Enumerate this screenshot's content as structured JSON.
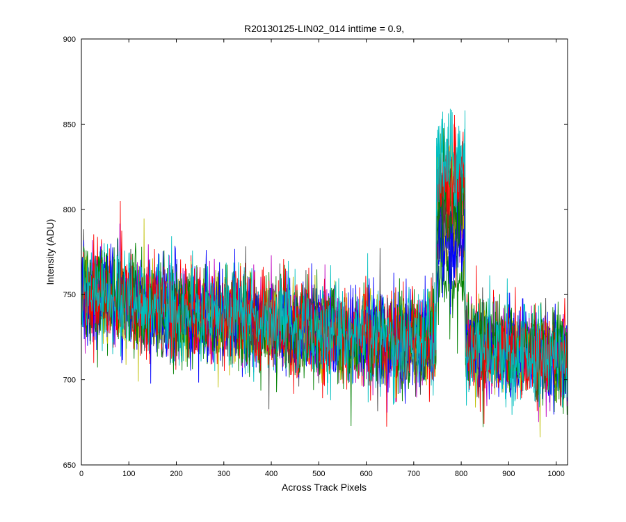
{
  "chart_data": {
    "type": "line",
    "title": "R20130125-LIN02_014 inttime = 0.9,",
    "xlabel": "Across Track Pixels",
    "ylabel": "Intensity (ADU)",
    "xlim": [
      0,
      1024
    ],
    "ylim": [
      650,
      900
    ],
    "xticks": [
      0,
      100,
      200,
      300,
      400,
      500,
      600,
      700,
      800,
      900,
      1000
    ],
    "yticks": [
      650,
      700,
      750,
      800,
      850,
      900
    ],
    "grid": false,
    "legend": "none",
    "x": {
      "start": 0,
      "stop": 1023,
      "step": 1
    },
    "background_trend": {
      "points": [
        [
          0,
          752
        ],
        [
          100,
          746
        ],
        [
          200,
          740
        ],
        [
          300,
          736
        ],
        [
          400,
          733
        ],
        [
          500,
          729
        ],
        [
          600,
          725
        ],
        [
          700,
          723
        ],
        [
          750,
          722
        ],
        [
          800,
          720
        ],
        [
          900,
          716
        ],
        [
          1023,
          713
        ]
      ],
      "noise_sd": 13
    },
    "peak_region": {
      "x_start": 748,
      "x_end": 808
    },
    "series": [
      {
        "color": "#0000ff",
        "peak_level": 785
      },
      {
        "color": "#008000",
        "peak_level": 760
      },
      {
        "color": "#ff0000",
        "peak_level": 810
      },
      {
        "color": "#00bfbf",
        "peak_level": 820
      },
      {
        "color": "#bf00bf",
        "peak_level": 800
      },
      {
        "color": "#bfbf00",
        "peak_level": 790
      },
      {
        "color": "#404040",
        "peak_level": 795
      },
      {
        "color": "#0000ff",
        "peak_level": 780
      },
      {
        "color": "#008000",
        "peak_level": 805
      },
      {
        "color": "#ff0000",
        "peak_level": 815
      },
      {
        "color": "#00bfbf",
        "peak_level": 825
      }
    ]
  }
}
